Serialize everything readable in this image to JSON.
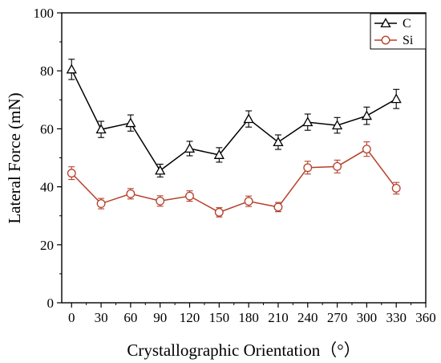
{
  "chart_data": {
    "type": "line",
    "xlabel": "Crystallographic Orientation（°）",
    "ylabel": "Lateral Force (mN)",
    "xlim": [
      -10,
      360
    ],
    "ylim": [
      0,
      100
    ],
    "x_ticks": [
      0,
      30,
      60,
      90,
      120,
      150,
      180,
      210,
      240,
      270,
      300,
      330,
      360
    ],
    "y_ticks": [
      0,
      20,
      40,
      60,
      80,
      100
    ],
    "x": [
      0,
      30,
      60,
      90,
      120,
      150,
      180,
      210,
      240,
      270,
      300,
      330
    ],
    "legend_position": "top-right",
    "series": [
      {
        "name": "C",
        "color": "#000000",
        "marker": "triangle",
        "values": [
          80.5,
          59.8,
          62.0,
          45.6,
          53.2,
          51.0,
          63.4,
          55.4,
          62.3,
          61.2,
          64.5,
          70.3
        ],
        "errors": [
          3.5,
          2.8,
          2.8,
          2.2,
          2.5,
          2.5,
          2.8,
          2.5,
          2.8,
          2.7,
          3.0,
          3.3
        ]
      },
      {
        "name": "Si",
        "color": "#b5402a",
        "marker": "circle",
        "values": [
          44.7,
          34.2,
          37.6,
          35.1,
          36.8,
          31.2,
          35.0,
          33.0,
          46.6,
          47.0,
          53.0,
          39.5
        ],
        "errors": [
          2.2,
          1.8,
          1.8,
          1.8,
          1.8,
          1.6,
          1.8,
          1.6,
          2.2,
          2.2,
          2.5,
          2.0
        ]
      }
    ]
  }
}
